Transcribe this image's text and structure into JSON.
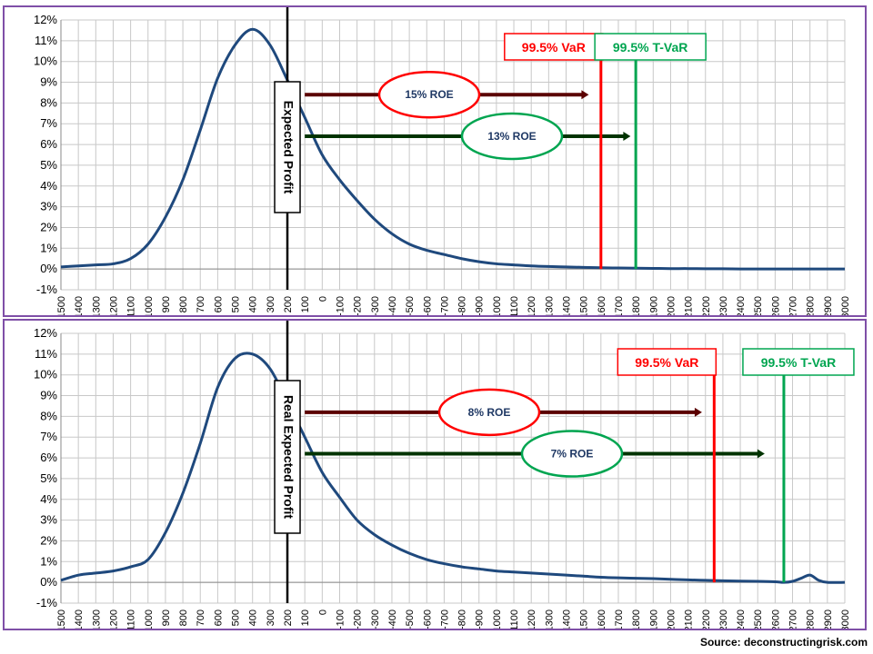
{
  "source": "Source: deconstructingrisk.com",
  "colors": {
    "curve": "#1f497d",
    "var": "#ff0000",
    "tvar": "#00a550",
    "roe_top_arrow": "#5b0000",
    "roe_bottom_arrow": "#003300",
    "panel_border": "#7f4fa7"
  },
  "chart_data": [
    {
      "type": "line",
      "title": "",
      "xlabel": "",
      "ylabel": "",
      "x_ticks": [
        1500,
        1400,
        1300,
        1200,
        1100,
        1000,
        900,
        800,
        700,
        600,
        500,
        400,
        300,
        200,
        100,
        0,
        -100,
        -200,
        -300,
        -400,
        -500,
        -600,
        -700,
        -800,
        -900,
        -1000,
        -1100,
        -1200,
        -1300,
        -1400,
        -1500,
        -1600,
        -1700,
        -1800,
        -1900,
        -2000,
        -2100,
        -2200,
        -2300,
        -2400,
        -2500,
        -2600,
        -2700,
        -2800,
        -2900,
        -3000
      ],
      "x_tick_labels": [
        "1500",
        "1400",
        "1300",
        "1200",
        "1100",
        "1000",
        "900",
        "800",
        "700",
        "600",
        "500",
        "400",
        "300",
        "200",
        "100",
        "0",
        "-100",
        "-200",
        "-300",
        "-400",
        "-500",
        "-600",
        "-700",
        "-800",
        "-900",
        "-1000",
        "-1100",
        "-1200",
        "-1300",
        "-1400",
        "-1500",
        "-1600",
        "-1700",
        "-1800",
        "-1900",
        "-2000",
        "-2100",
        "-2200",
        "-2300",
        "-2400",
        "-2500",
        "-2600",
        "-2700",
        "-2800",
        "-2900",
        "-3000"
      ],
      "y_tick_labels": [
        "-1%",
        "0%",
        "1%",
        "2%",
        "3%",
        "4%",
        "5%",
        "6%",
        "7%",
        "8%",
        "9%",
        "10%",
        "11%",
        "12%"
      ],
      "ylim": [
        -1,
        12
      ],
      "xlim": [
        1500,
        -3000
      ],
      "grid": true,
      "series": [
        {
          "x": [
            1500,
            1400,
            1300,
            1200,
            1100,
            1000,
            900,
            800,
            700,
            600,
            500,
            400,
            300,
            200,
            100,
            0,
            -100,
            -200,
            -300,
            -400,
            -500,
            -600,
            -700,
            -800,
            -900,
            -1000,
            -1100,
            -1200,
            -1300,
            -1400,
            -1500,
            -1600,
            -1700,
            -1800,
            -1900,
            -2000,
            -2100,
            -2200,
            -2300,
            -2400,
            -2500,
            -2600,
            -2700,
            -2800,
            -2900,
            -3000
          ],
          "y": [
            0.1,
            0.15,
            0.2,
            0.25,
            0.5,
            1.2,
            2.5,
            4.3,
            6.7,
            9.2,
            10.8,
            11.55,
            10.8,
            9.1,
            7.3,
            5.5,
            4.3,
            3.3,
            2.4,
            1.7,
            1.2,
            0.9,
            0.7,
            0.5,
            0.35,
            0.25,
            0.2,
            0.15,
            0.12,
            0.1,
            0.08,
            0.06,
            0.05,
            0.04,
            0.03,
            0.02,
            0.02,
            0.01,
            0.01,
            0.0,
            0.0,
            0.0,
            0.0,
            0.0,
            0.0,
            0.0
          ]
        }
      ],
      "vertical_marker": {
        "x": 200,
        "label": "Expected Profit"
      },
      "risk_lines": [
        {
          "name": "var",
          "x": -1600,
          "label": "99.5% VaR"
        },
        {
          "name": "tvar",
          "x": -1800,
          "label": "99.5% T-VaR"
        }
      ],
      "roe_arrows": [
        {
          "name": "roe-arrow-15",
          "x_start": 100,
          "x_end": -1530,
          "y": 8.4,
          "label": "15% ROE"
        },
        {
          "name": "roe-arrow-13",
          "x_start": 100,
          "x_end": -1770,
          "y": 6.4,
          "label": "13% ROE"
        }
      ]
    },
    {
      "type": "line",
      "title": "",
      "xlabel": "",
      "ylabel": "",
      "x_ticks": [
        1500,
        1400,
        1300,
        1200,
        1100,
        1000,
        900,
        800,
        700,
        600,
        500,
        400,
        300,
        200,
        100,
        0,
        -100,
        -200,
        -300,
        -400,
        -500,
        -600,
        -700,
        -800,
        -900,
        -1000,
        -1100,
        -1200,
        -1300,
        -1400,
        -1500,
        -1600,
        -1700,
        -1800,
        -1900,
        -2000,
        -2100,
        -2200,
        -2300,
        -2400,
        -2500,
        -2600,
        -2700,
        -2800,
        -2900,
        -3000
      ],
      "x_tick_labels": [
        "1500",
        "1400",
        "1300",
        "1200",
        "1100",
        "1000",
        "900",
        "800",
        "700",
        "600",
        "500",
        "400",
        "300",
        "200",
        "100",
        "0",
        "-100",
        "-200",
        "-300",
        "-400",
        "-500",
        "-600",
        "-700",
        "-800",
        "-900",
        "-1000",
        "-1100",
        "-1200",
        "-1300",
        "-1400",
        "-1500",
        "-1600",
        "-1700",
        "-1800",
        "-1900",
        "-2000",
        "-2100",
        "-2200",
        "-2300",
        "-2400",
        "-2500",
        "-2600",
        "-2700",
        "-2800",
        "-2900",
        "-3000"
      ],
      "y_tick_labels": [
        "-1%",
        "0%",
        "1%",
        "2%",
        "3%",
        "4%",
        "5%",
        "6%",
        "7%",
        "8%",
        "9%",
        "10%",
        "11%",
        "12%"
      ],
      "ylim": [
        -1,
        12
      ],
      "xlim": [
        1500,
        -3000
      ],
      "grid": true,
      "series": [
        {
          "x": [
            1500,
            1400,
            1300,
            1200,
            1100,
            1000,
            900,
            800,
            700,
            600,
            500,
            400,
            300,
            200,
            100,
            0,
            -100,
            -200,
            -300,
            -400,
            -500,
            -600,
            -700,
            -800,
            -900,
            -1000,
            -1100,
            -1200,
            -1300,
            -1400,
            -1500,
            -1600,
            -1700,
            -1800,
            -1900,
            -2000,
            -2100,
            -2200,
            -2300,
            -2400,
            -2500,
            -2600,
            -2650,
            -2700,
            -2750,
            -2800,
            -2850,
            -2900,
            -3000
          ],
          "y": [
            0.1,
            0.35,
            0.45,
            0.55,
            0.75,
            1.1,
            2.4,
            4.3,
            6.7,
            9.4,
            10.8,
            11.0,
            10.3,
            8.7,
            7.0,
            5.3,
            4.1,
            3.0,
            2.3,
            1.8,
            1.4,
            1.1,
            0.9,
            0.75,
            0.65,
            0.55,
            0.5,
            0.45,
            0.4,
            0.35,
            0.3,
            0.25,
            0.22,
            0.2,
            0.18,
            0.15,
            0.12,
            0.1,
            0.08,
            0.06,
            0.05,
            0.03,
            0.0,
            0.05,
            0.2,
            0.35,
            0.1,
            0.0,
            0.0
          ]
        }
      ],
      "vertical_marker": {
        "x": 200,
        "label": "Real Expected Profit"
      },
      "risk_lines": [
        {
          "name": "var",
          "x": -2250,
          "label": "99.5% VaR"
        },
        {
          "name": "tvar",
          "x": -2650,
          "label": "99.5% T-VaR"
        }
      ],
      "roe_arrows": [
        {
          "name": "roe-arrow-8",
          "x_start": 100,
          "x_end": -2180,
          "y": 8.2,
          "label": "8% ROE"
        },
        {
          "name": "roe-arrow-7",
          "x_start": 100,
          "x_end": -2540,
          "y": 6.2,
          "label": "7% ROE"
        }
      ]
    }
  ]
}
